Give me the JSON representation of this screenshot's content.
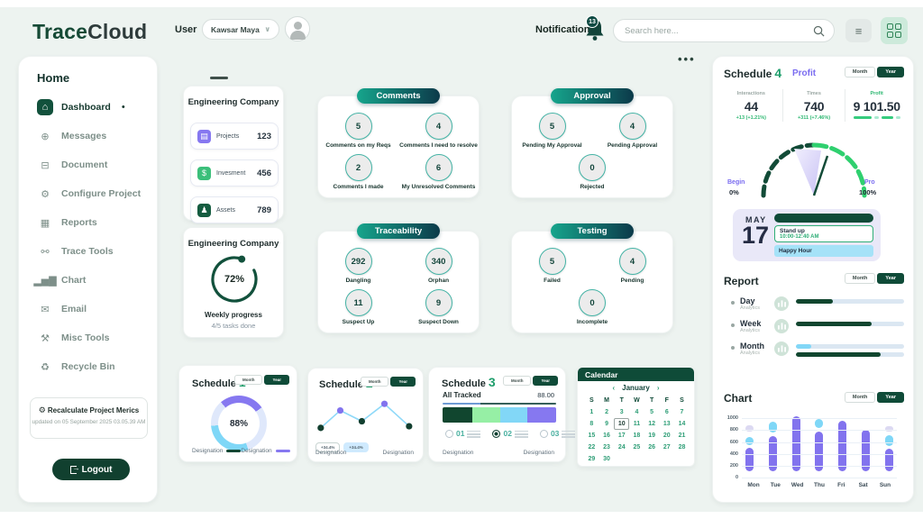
{
  "topbar": {
    "logo_part1": "Trace",
    "logo_part2": "Cloud",
    "user_label": "User",
    "user_name": "Kawsar Maya",
    "chevron": "∨",
    "notifications_label": "Notifications",
    "notifications_count": "13",
    "search_placeholder": "Search here..."
  },
  "sidebar": {
    "home_label": "Home",
    "items": [
      {
        "label": "Dashboard",
        "icon": "dashboard-home-icon",
        "active": true
      },
      {
        "label": "Messages",
        "icon": "messages-icon",
        "active": false
      },
      {
        "label": "Document",
        "icon": "document-icon",
        "active": false
      },
      {
        "label": "Configure Project",
        "icon": "configure-gear-icon",
        "active": false
      },
      {
        "label": "Reports",
        "icon": "reports-icon",
        "active": false
      },
      {
        "label": "Trace Tools",
        "icon": "trace-tools-icon",
        "active": false
      },
      {
        "label": "Chart",
        "icon": "chart-bars-icon",
        "active": false
      },
      {
        "label": "Email",
        "icon": "email-icon",
        "active": false
      },
      {
        "label": "Misc Tools",
        "icon": "misc-tools-icon",
        "active": false
      },
      {
        "label": "Recycle Bin",
        "icon": "recycle-bin-icon",
        "active": false
      }
    ],
    "recalculate_label": "Recalculate Project Merics",
    "recalculate_updated": "updated on 05 September 2025 03.05.39 AM",
    "logout_label": "Logout"
  },
  "menu_dots": "•••",
  "toggle": {
    "month": "Month",
    "year": "Year"
  },
  "company_stats": {
    "title": "Engineering Company",
    "rows": [
      {
        "icon": "briefcase-icon",
        "label": "Projects",
        "value": "123"
      },
      {
        "icon": "investment-icon",
        "label": "Invesment",
        "value": "456"
      },
      {
        "icon": "assets-icon",
        "label": "Assets",
        "value": "789"
      }
    ]
  },
  "company_progress": {
    "title": "Engineering Company",
    "percent": "72%",
    "line1": "Weekly progress",
    "line2": "4/5 tasks done"
  },
  "badge_cards": [
    {
      "id": "comments",
      "title": "Comments",
      "items": [
        {
          "value": "5",
          "label": "Comments on my Reqs"
        },
        {
          "value": "4",
          "label": "Comments I need to resolve"
        },
        {
          "value": "2",
          "label": "Comments I made"
        },
        {
          "value": "6",
          "label": "My Unresolved Comments"
        }
      ]
    },
    {
      "id": "approval",
      "title": "Approval",
      "items": [
        {
          "value": "5",
          "label": "Pending My Approval"
        },
        {
          "value": "4",
          "label": "Pending Approval"
        },
        {
          "value": "0",
          "label": "Rejected"
        }
      ]
    },
    {
      "id": "traceability",
      "title": "Traceability",
      "items": [
        {
          "value": "292",
          "label": "Dangling"
        },
        {
          "value": "340",
          "label": "Orphan"
        },
        {
          "value": "11",
          "label": "Suspect Up"
        },
        {
          "value": "9",
          "label": "Suspect Down"
        }
      ]
    },
    {
      "id": "testing",
      "title": "Testing",
      "items": [
        {
          "value": "5",
          "label": "Failed"
        },
        {
          "value": "4",
          "label": "Pending"
        },
        {
          "value": "0",
          "label": "Incomplete"
        }
      ]
    }
  ],
  "schedule1": {
    "title": "Schedule",
    "number": "1",
    "percent": "88%",
    "donut_start": -40,
    "arcs": [
      {
        "color": "#8678f0",
        "span": 95
      },
      {
        "color": "#dfe8fb",
        "span": 105
      },
      {
        "color": "#7fd7f7",
        "span": 105
      },
      {
        "color": "#dfe8fb",
        "span": 55
      }
    ],
    "legends": [
      {
        "label": "Designation",
        "color": "#124734"
      },
      {
        "label": "Designation",
        "color": "#8678f0"
      }
    ]
  },
  "schedule2": {
    "title": "Schedule",
    "number": "2",
    "points": [
      {
        "x": 6,
        "y": 78,
        "color": "#123f2f"
      },
      {
        "x": 25,
        "y": 36,
        "color": "#8273ee"
      },
      {
        "x": 46,
        "y": 62,
        "color": "#123f2f"
      },
      {
        "x": 68,
        "y": 20,
        "color": "#8273ee"
      },
      {
        "x": 92,
        "y": 74,
        "color": "#123f2f"
      }
    ],
    "line_color": "#8fd9f8",
    "tags": [
      "+34.4%",
      "+34.4%"
    ],
    "legends": [
      "Designation",
      "Designation"
    ]
  },
  "schedule3": {
    "title": "Schedule",
    "number": "3",
    "subtitle": "All Tracked",
    "value": "88.00",
    "thin_segments": [
      {
        "color": "#6e9bd4",
        "pct": 33
      },
      {
        "color": "#35605a",
        "pct": 67
      }
    ],
    "segments": [
      {
        "color": "#11462f",
        "pct": 26
      },
      {
        "color": "#96efa5",
        "pct": 25
      },
      {
        "color": "#82d7f7",
        "pct": 24
      },
      {
        "color": "#8678f0",
        "pct": 25
      }
    ],
    "options": [
      {
        "num": "01",
        "selected": false
      },
      {
        "num": "02",
        "selected": true
      },
      {
        "num": "03",
        "selected": false
      }
    ],
    "legends": [
      "Designation",
      "Designation"
    ]
  },
  "calendar": {
    "title": "Calendar",
    "month": "January",
    "prev": "‹",
    "next": "›",
    "weekdays": [
      "S",
      "M",
      "T",
      "W",
      "T",
      "F",
      "S"
    ],
    "days": 30,
    "selected_day": 10
  },
  "schedule4": {
    "title": "Schedule",
    "number": "4",
    "tab": "Profit",
    "stats": [
      {
        "label": "Interactions",
        "value": "44",
        "delta": "+13 (+1.21%)"
      },
      {
        "label": "Times",
        "value": "740",
        "delta": "+311 (+7.46%)"
      },
      {
        "label": "Profit",
        "value": "9 101.50",
        "delta": ""
      }
    ],
    "gauge": {
      "left_label": "Begin",
      "left_value": "0%",
      "right_label": "Pro",
      "right_value": "100%"
    },
    "event": {
      "month": "MAY",
      "day": "17",
      "items": [
        {
          "type": "pill",
          "label": "",
          "time": ""
        },
        {
          "type": "outlined",
          "label": "Stand up",
          "time": "10:00-12:40 AM"
        },
        {
          "type": "blue",
          "label": "Happy Hour",
          "time": ""
        }
      ]
    }
  },
  "report": {
    "title": "Report",
    "rows": [
      {
        "label": "Day",
        "sub": "Analytics",
        "bars": [
          {
            "color": "#11462f",
            "pct": 34
          }
        ]
      },
      {
        "label": "Week",
        "sub": "Analytics",
        "bars": [
          {
            "color": "#11462f",
            "pct": 70
          }
        ]
      },
      {
        "label": "Month",
        "sub": "Analytics",
        "bars": [
          {
            "color": "#82d7f7",
            "pct": 14
          },
          {
            "color": "#11462f",
            "pct": 78
          }
        ]
      }
    ]
  },
  "chart_section": {
    "title": "Chart",
    "ymax": 1050,
    "yticks": [
      "1000",
      "800",
      "600",
      "400",
      "200",
      "0"
    ],
    "days": [
      "Mon",
      "Tue",
      "Wed",
      "Thu",
      "Fri",
      "Sat",
      "Sun"
    ],
    "colors": {
      "purple": "#8273ee",
      "sky": "#7fd7f7",
      "lav": "#dcd9f2"
    },
    "bars": [
      {
        "day": "Mon",
        "segments": [
          {
            "from": 110,
            "to": 500,
            "color": "purple"
          },
          {
            "from": 555,
            "to": 690,
            "color": "sky"
          },
          {
            "from": 780,
            "to": 890,
            "color": "lav"
          }
        ]
      },
      {
        "day": "Tue",
        "segments": [
          {
            "from": 110,
            "to": 700,
            "color": "purple"
          },
          {
            "from": 755,
            "to": 950,
            "color": "sky"
          }
        ]
      },
      {
        "day": "Wed",
        "segments": [
          {
            "from": 110,
            "to": 1040,
            "color": "purple"
          }
        ]
      },
      {
        "day": "Thu",
        "segments": [
          {
            "from": 110,
            "to": 775,
            "color": "purple"
          },
          {
            "from": 835,
            "to": 990,
            "color": "sky"
          }
        ]
      },
      {
        "day": "Fri",
        "segments": [
          {
            "from": 110,
            "to": 960,
            "color": "purple"
          }
        ]
      },
      {
        "day": "Sat",
        "segments": [
          {
            "from": 110,
            "to": 805,
            "color": "purple"
          }
        ]
      },
      {
        "day": "Sun",
        "segments": [
          {
            "from": 110,
            "to": 480,
            "color": "purple"
          },
          {
            "from": 540,
            "to": 715,
            "color": "sky"
          },
          {
            "from": 780,
            "to": 865,
            "color": "lav"
          }
        ]
      }
    ]
  }
}
